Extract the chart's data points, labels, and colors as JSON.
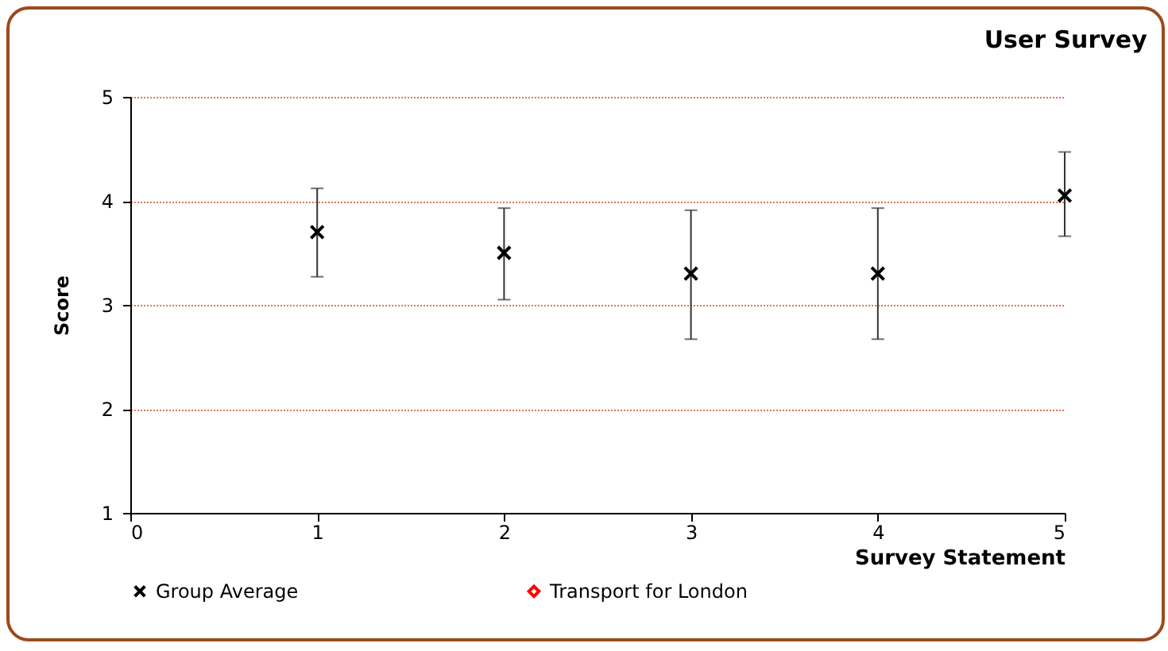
{
  "chart_data": {
    "type": "scatter",
    "title": "User Survey",
    "xlabel": "Survey Statement",
    "ylabel": "Score",
    "x": [
      1,
      2,
      3,
      4,
      5
    ],
    "series": [
      {
        "name": "Group Average",
        "color": "#000000",
        "values": [
          3.7,
          3.5,
          3.3,
          3.3,
          4.05
        ],
        "errors": [
          [
            3.27,
            4.12
          ],
          [
            3.05,
            3.93
          ],
          [
            2.67,
            3.91
          ],
          [
            2.67,
            3.93
          ],
          [
            3.66,
            4.47
          ]
        ]
      },
      {
        "name": "Transport for London",
        "color": "#ff0000",
        "marker": "diamond",
        "values": [
          null,
          null,
          null,
          null,
          null
        ]
      }
    ],
    "xlim": [
      0,
      5
    ],
    "xticks": [
      0,
      1,
      2,
      3,
      4,
      5
    ],
    "ylim": [
      1,
      5
    ],
    "yticks": [
      1,
      2,
      3,
      4,
      5
    ],
    "grid": "y",
    "marker": "cross",
    "legend": "bottom"
  }
}
